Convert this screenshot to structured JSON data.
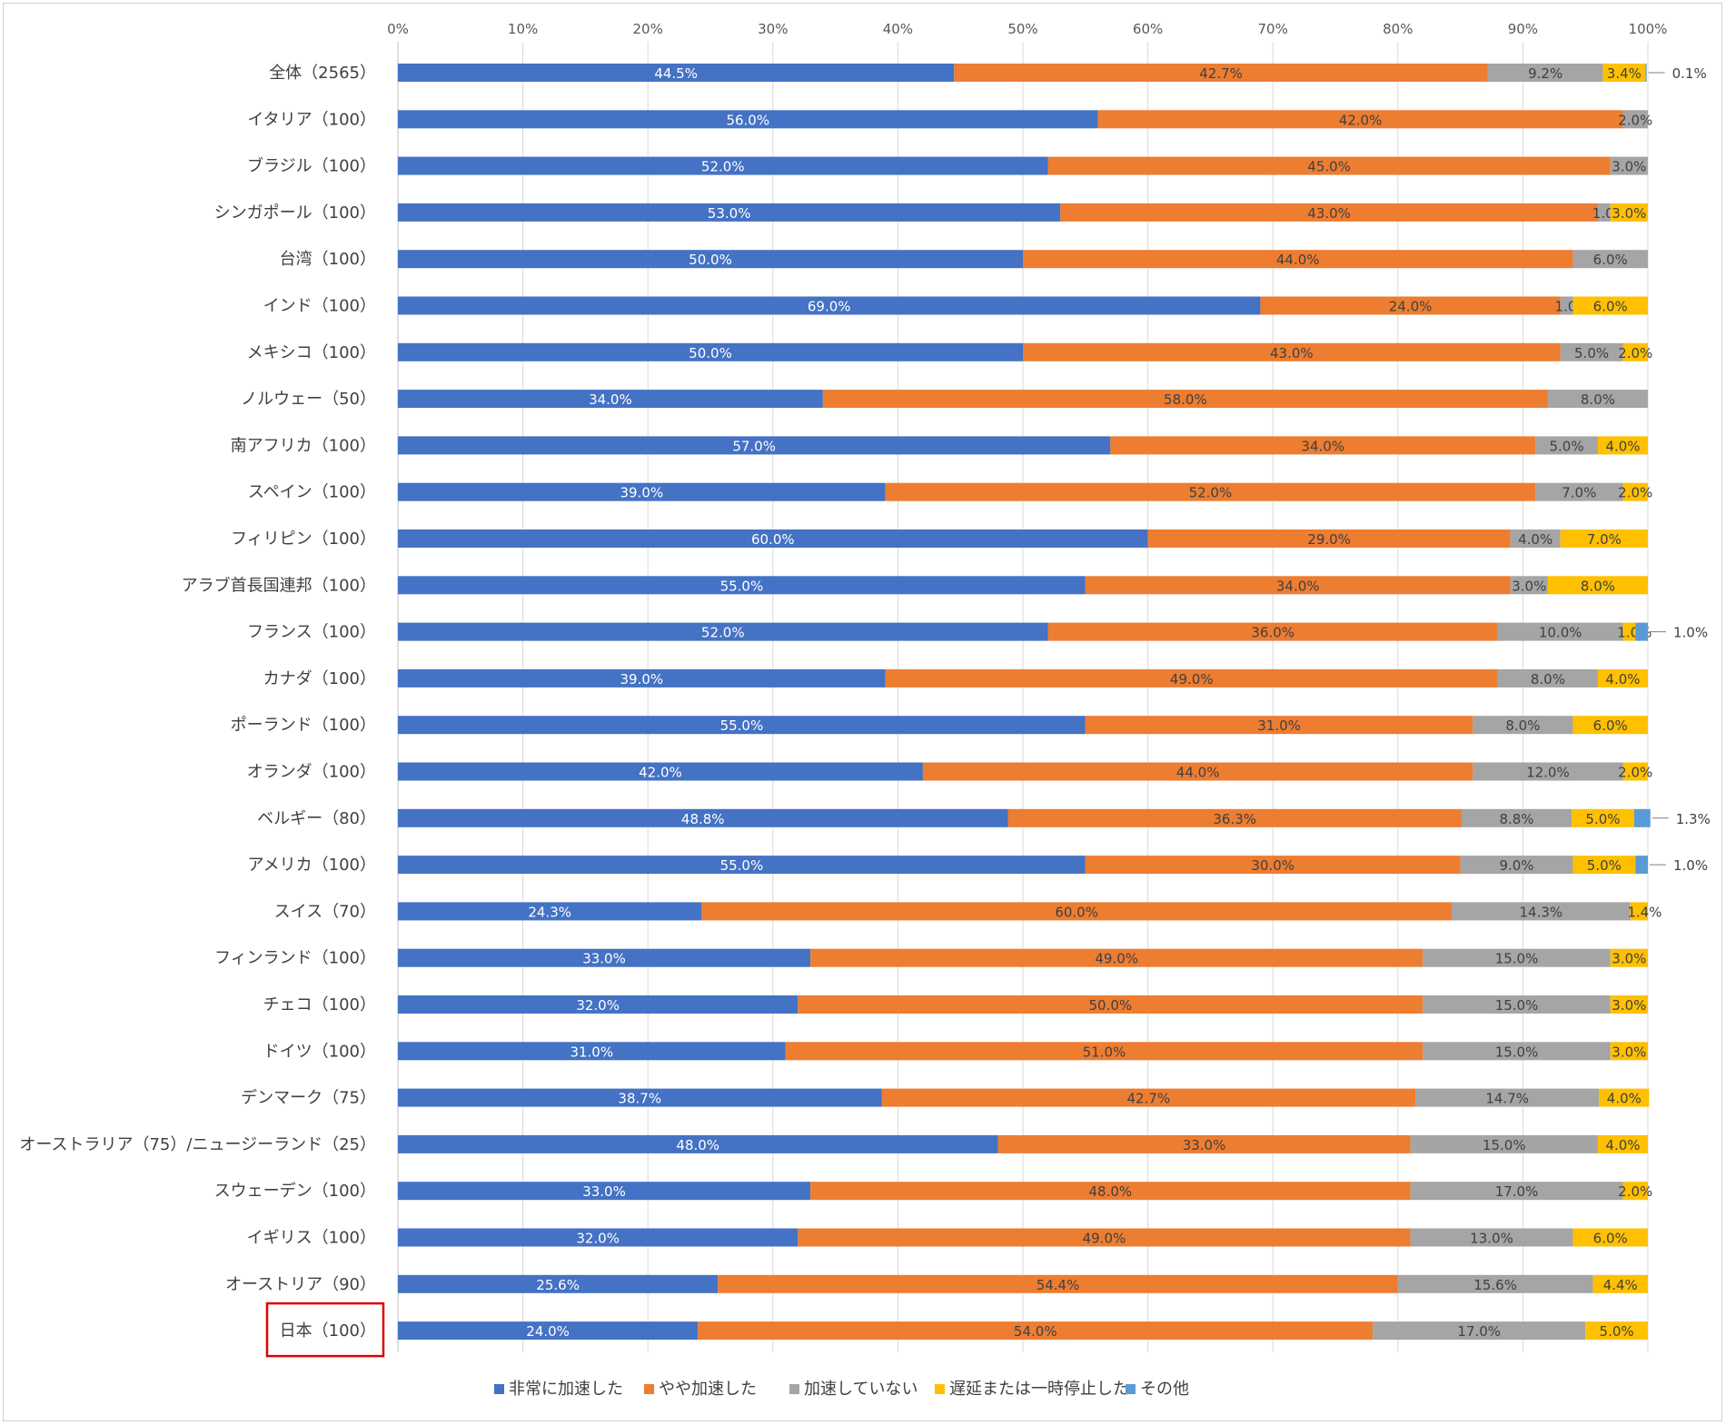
{
  "chart_data": {
    "type": "bar",
    "orientation": "horizontal",
    "stacked": "percent",
    "title": "",
    "xlabel": "",
    "ylabel": "",
    "xlim": [
      0,
      100
    ],
    "x_ticks": [
      "0%",
      "10%",
      "20%",
      "30%",
      "40%",
      "50%",
      "60%",
      "70%",
      "80%",
      "90%",
      "100%"
    ],
    "grid": "vertical",
    "legend_position": "bottom",
    "categories": [
      "全体（2565）",
      "イタリア（100）",
      "ブラジル（100）",
      "シンガポール（100）",
      "台湾（100）",
      "インド（100）",
      "メキシコ（100）",
      "ノルウェー（50）",
      "南アフリカ（100）",
      "スペイン（100）",
      "フィリピン（100）",
      "アラブ首長国連邦（100）",
      "フランス（100）",
      "カナダ（100）",
      "ポーランド（100）",
      "オランダ（100）",
      "ベルギー（80）",
      "アメリカ（100）",
      "スイス（70）",
      "フィンランド（100）",
      "チェコ（100）",
      "ドイツ（100）",
      "デンマーク（75）",
      "オーストラリア（75）/ニュージーランド（25）",
      "スウェーデン（100）",
      "イギリス（100）",
      "オーストリア（90）",
      "日本（100）"
    ],
    "highlighted_category": "日本（100）",
    "series": [
      {
        "name": "非常に加速した",
        "color": "#4472C4",
        "label_color": "#ffffff",
        "values": [
          44.5,
          56.0,
          52.0,
          53.0,
          50.0,
          69.0,
          50.0,
          34.0,
          57.0,
          39.0,
          60.0,
          55.0,
          52.0,
          39.0,
          55.0,
          42.0,
          48.8,
          55.0,
          24.3,
          33.0,
          32.0,
          31.0,
          38.7,
          48.0,
          33.0,
          32.0,
          25.6,
          24.0
        ],
        "labels": [
          "44.5%",
          "56.0%",
          "52.0%",
          "53.0%",
          "50.0%",
          "69.0%",
          "50.0%",
          "34.0%",
          "57.0%",
          "39.0%",
          "60.0%",
          "55.0%",
          "52.0%",
          "39.0%",
          "55.0%",
          "42.0%",
          "48.8%",
          "55.0%",
          "24.3%",
          "33.0%",
          "32.0%",
          "31.0%",
          "38.7%",
          "48.0%",
          "33.0%",
          "32.0%",
          "25.6%",
          "24.0%"
        ]
      },
      {
        "name": "やや加速した",
        "color": "#ED7D31",
        "label_color": "#404040",
        "values": [
          42.7,
          42.0,
          45.0,
          43.0,
          44.0,
          24.0,
          43.0,
          58.0,
          34.0,
          52.0,
          29.0,
          34.0,
          36.0,
          49.0,
          31.0,
          44.0,
          36.3,
          30.0,
          60.0,
          49.0,
          50.0,
          51.0,
          42.7,
          33.0,
          48.0,
          49.0,
          54.4,
          54.0
        ],
        "labels": [
          "42.7%",
          "42.0%",
          "45.0%",
          "43.0%",
          "44.0%",
          "24.0%",
          "43.0%",
          "58.0%",
          "34.0%",
          "52.0%",
          "29.0%",
          "34.0%",
          "36.0%",
          "49.0%",
          "31.0%",
          "44.0%",
          "36.3%",
          "30.0%",
          "60.0%",
          "49.0%",
          "50.0%",
          "51.0%",
          "42.7%",
          "33.0%",
          "48.0%",
          "49.0%",
          "54.4%",
          "54.0%"
        ]
      },
      {
        "name": "加速していない",
        "color": "#A5A5A5",
        "label_color": "#404040",
        "values": [
          9.2,
          2.0,
          3.0,
          1.0,
          6.0,
          1.0,
          5.0,
          8.0,
          5.0,
          7.0,
          4.0,
          3.0,
          10.0,
          8.0,
          8.0,
          12.0,
          8.8,
          9.0,
          14.3,
          15.0,
          15.0,
          15.0,
          14.7,
          15.0,
          17.0,
          13.0,
          15.6,
          17.0
        ],
        "labels": [
          "9.2%",
          "2.0%",
          "3.0%",
          "1.0%",
          "6.0%",
          "1.0%",
          "5.0%",
          "8.0%",
          "5.0%",
          "7.0%",
          "4.0%",
          "3.0%",
          "10.0%",
          "8.0%",
          "8.0%",
          "12.0%",
          "8.8%",
          "9.0%",
          "14.3%",
          "15.0%",
          "15.0%",
          "15.0%",
          "14.7%",
          "15.0%",
          "17.0%",
          "13.0%",
          "15.6%",
          "17.0%"
        ]
      },
      {
        "name": "遅延または一時停止した",
        "color": "#FFC000",
        "label_color": "#404040",
        "values": [
          3.4,
          0,
          0,
          3.0,
          0,
          6.0,
          2.0,
          0,
          4.0,
          2.0,
          7.0,
          8.0,
          1.0,
          4.0,
          6.0,
          2.0,
          5.0,
          5.0,
          1.4,
          3.0,
          3.0,
          3.0,
          4.0,
          4.0,
          2.0,
          6.0,
          4.4,
          5.0
        ],
        "labels": [
          "3.4%",
          "",
          "",
          "3.0%",
          "",
          "6.0%",
          "2.0%",
          "",
          "4.0%",
          "2.0%",
          "7.0%",
          "8.0%",
          "1.0%",
          "4.0%",
          "6.0%",
          "2.0%",
          "5.0%",
          "5.0%",
          "1.4%",
          "3.0%",
          "3.0%",
          "3.0%",
          "4.0%",
          "4.0%",
          "2.0%",
          "6.0%",
          "4.4%",
          "5.0%"
        ]
      },
      {
        "name": "その他",
        "color": "#5B9BD5",
        "label_color": "#404040",
        "values": [
          0.1,
          0,
          0,
          0,
          0,
          0,
          0,
          0,
          0,
          0,
          0,
          0,
          1.0,
          0,
          0,
          0,
          1.3,
          1.0,
          0,
          0,
          0,
          0,
          0,
          0,
          0,
          0,
          0,
          0
        ],
        "labels": [
          "0.1%",
          "",
          "",
          "",
          "",
          "",
          "",
          "",
          "",
          "",
          "",
          "",
          "1.0%",
          "",
          "",
          "",
          "1.3%",
          "1.0%",
          "",
          "",
          "",
          "",
          "",
          "",
          "",
          "",
          "",
          ""
        ]
      }
    ]
  }
}
